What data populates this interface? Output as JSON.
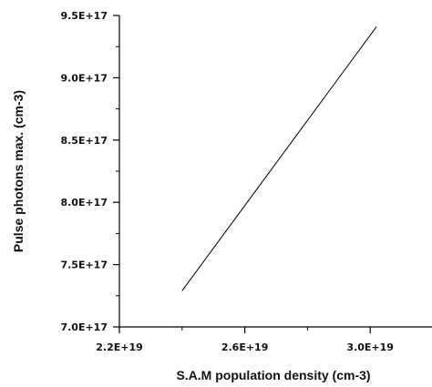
{
  "chart_data": {
    "type": "line",
    "title": "",
    "xlabel": "S.A.M population density (cm-3)",
    "ylabel": "Pulse photons max. (cm-3)",
    "xlim": [
      2.2e+19,
      3.2e+19
    ],
    "ylim": [
      7e+17,
      9.5e+17
    ],
    "x_ticks": [
      {
        "value": 2.2e+19,
        "label": "2.2E+19"
      },
      {
        "value": 2.6e+19,
        "label": "2.6E+19"
      },
      {
        "value": 3e+19,
        "label": "3.0E+19"
      }
    ],
    "x_minor_ticks": [
      2.4e+19,
      2.8e+19,
      3.2e+19
    ],
    "y_ticks": [
      {
        "value": 7e+17,
        "label": "7.0E+17"
      },
      {
        "value": 7.5e+17,
        "label": "7.5E+17"
      },
      {
        "value": 8e+17,
        "label": "8.0E+17"
      },
      {
        "value": 8.5e+17,
        "label": "8.5E+17"
      },
      {
        "value": 9e+17,
        "label": "9.0E+17"
      },
      {
        "value": 9.5e+17,
        "label": "9.5E+17"
      }
    ],
    "y_minor_ticks": [
      7.25e+17,
      7.75e+17,
      8.25e+17,
      8.75e+17,
      9.25e+17
    ],
    "grid": false,
    "series": [
      {
        "x": [
          2.4e+19,
          3.02e+19
        ],
        "y": [
          7.29e+17,
          9.41e+17
        ],
        "color": "#000000"
      }
    ]
  }
}
